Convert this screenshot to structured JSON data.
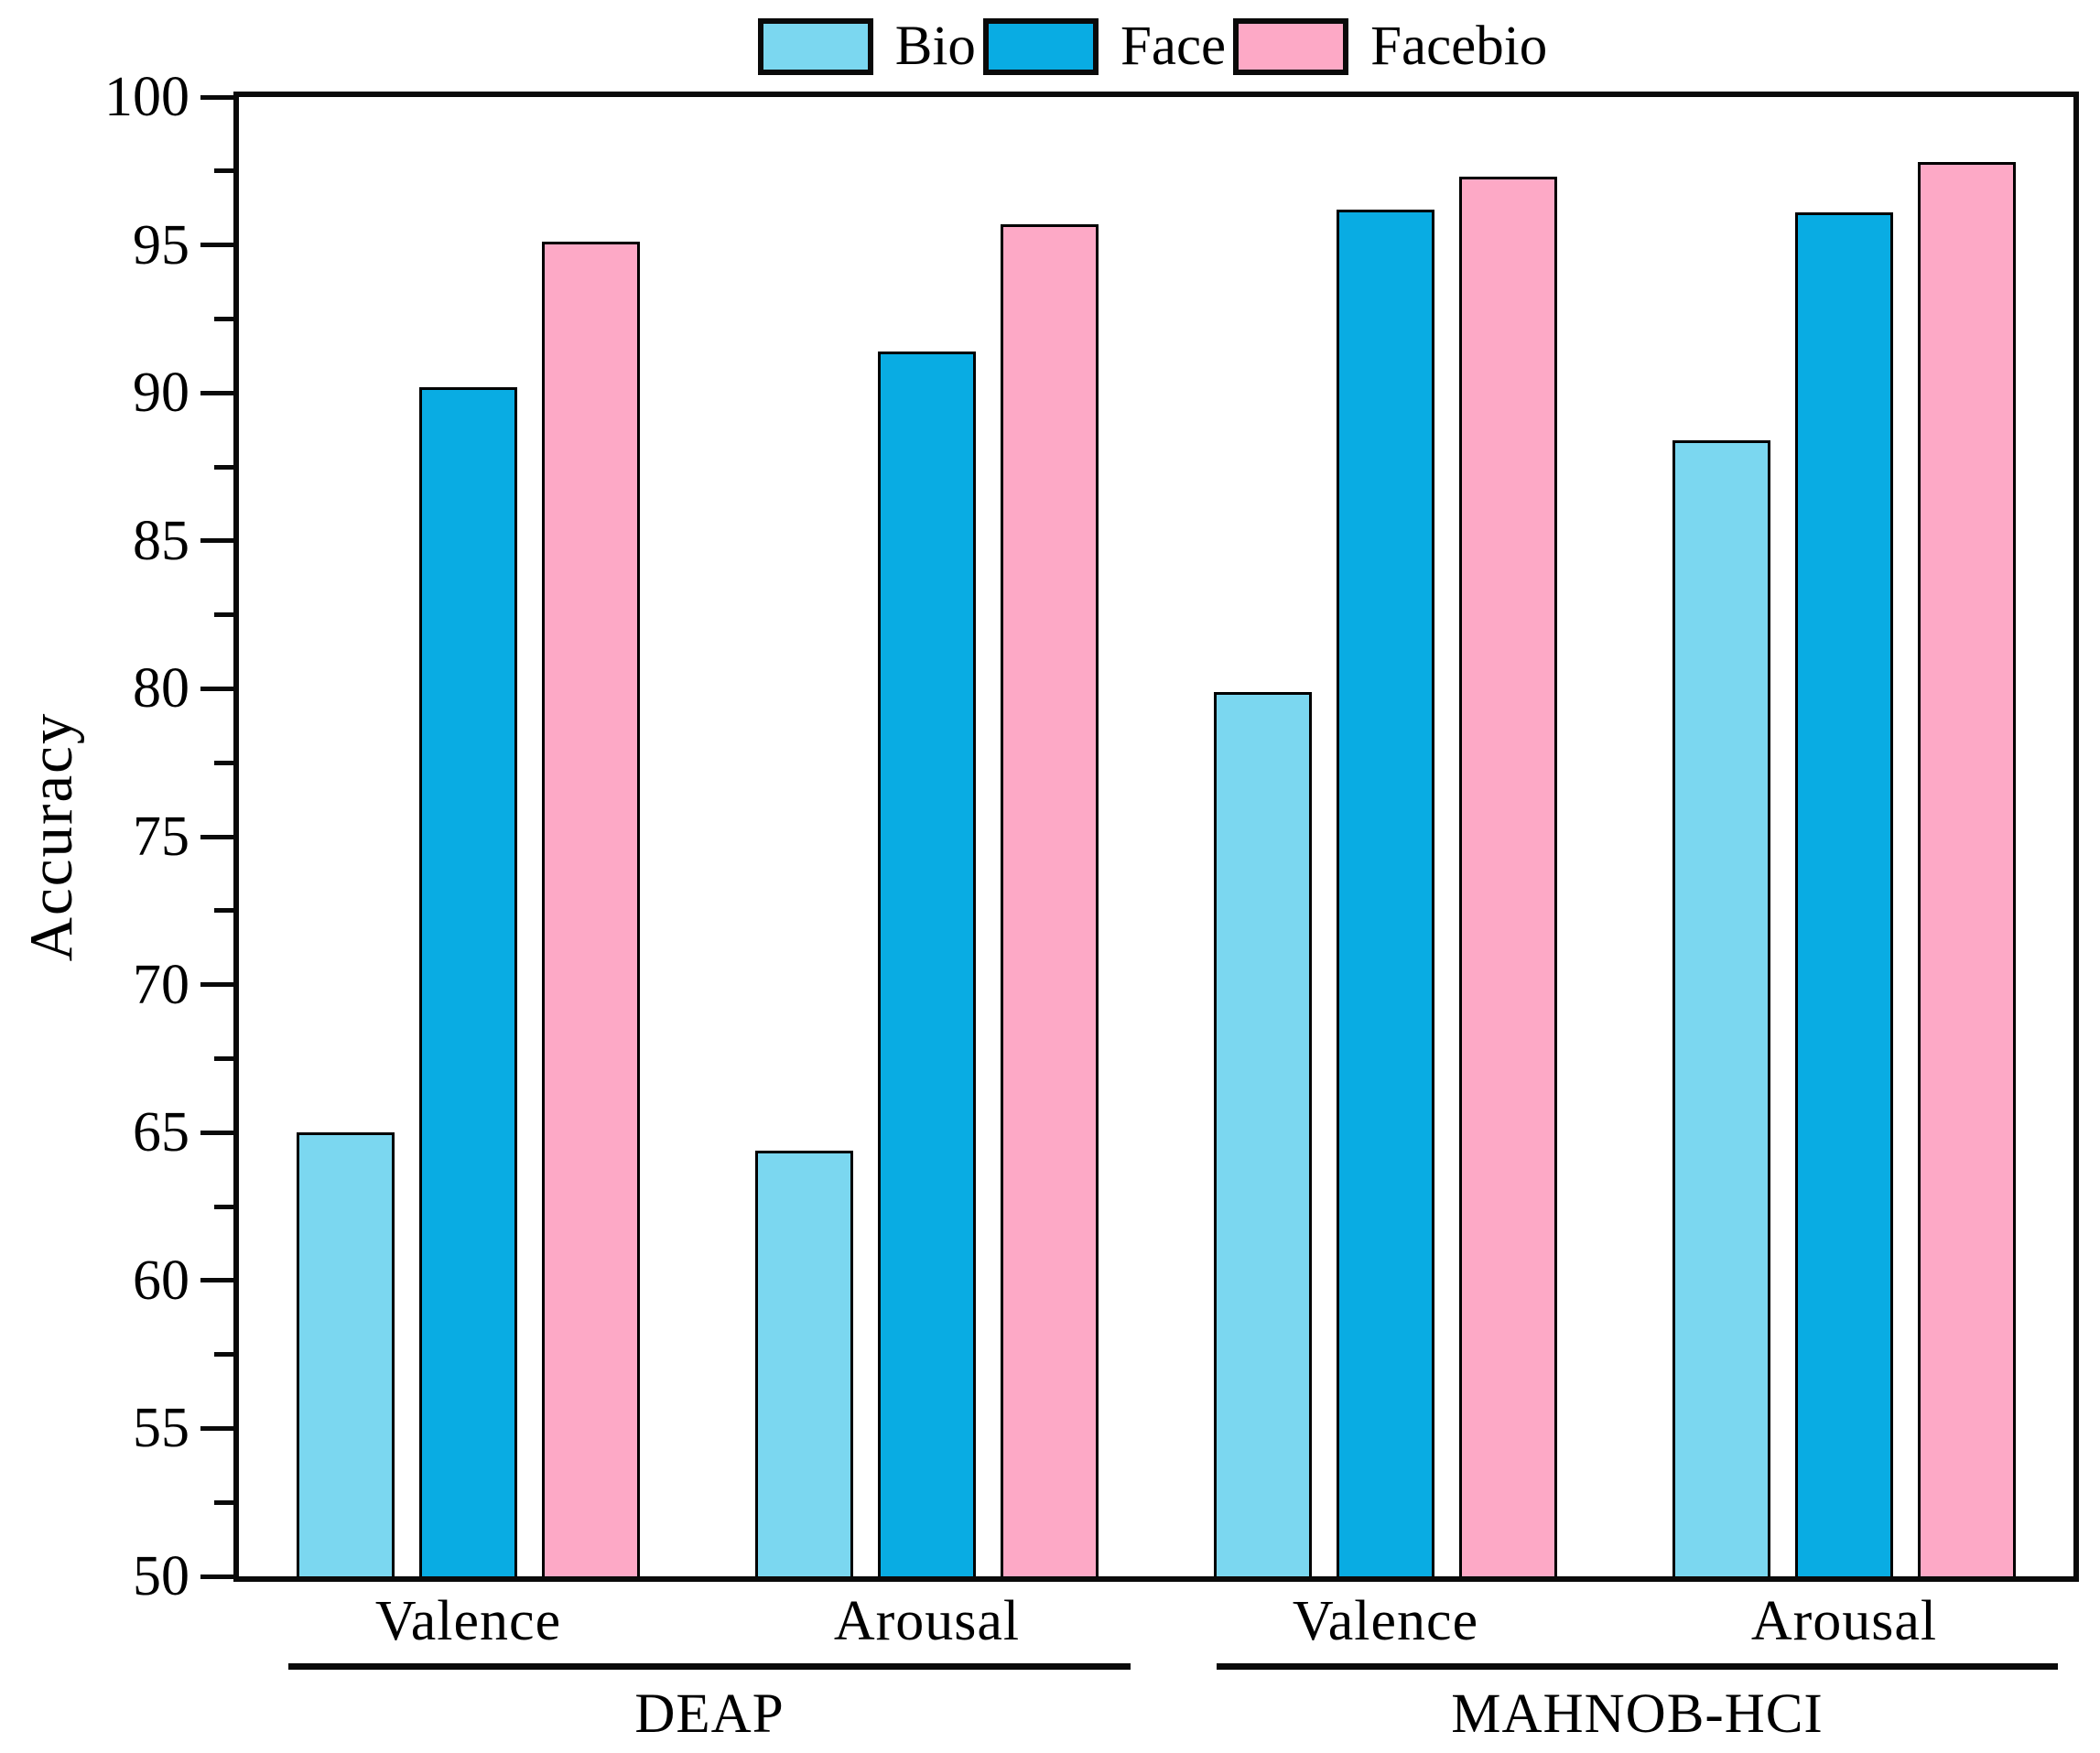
{
  "chart_data": {
    "type": "bar",
    "title": "",
    "ylabel": "Accuracy",
    "xlabel": "",
    "ylim": [
      50,
      100
    ],
    "ytick_major_step": 5,
    "ytick_minor_step": 2.5,
    "yticks": [
      50,
      55,
      60,
      65,
      70,
      75,
      80,
      85,
      90,
      95,
      100
    ],
    "grid": false,
    "legend_position": "top-center",
    "categories": [
      "Valence",
      "Arousal",
      "Valence",
      "Arousal"
    ],
    "sections": [
      {
        "label": "DEAP",
        "category_indexes": [
          0,
          1
        ]
      },
      {
        "label": "MAHNOB-HCI",
        "category_indexes": [
          2,
          3
        ]
      }
    ],
    "series": [
      {
        "name": "Bio",
        "color": "#7BD7F0",
        "values": [
          65.0,
          64.4,
          79.9,
          88.4
        ]
      },
      {
        "name": "Face",
        "color": "#09ACE3",
        "values": [
          90.2,
          91.4,
          96.2,
          96.1
        ]
      },
      {
        "name": "Facebio",
        "color": "#FDA9C6",
        "values": [
          95.1,
          95.7,
          97.3,
          97.8
        ]
      }
    ],
    "bar_border_color": "#000000",
    "axis_color": "#0a0a0a"
  }
}
